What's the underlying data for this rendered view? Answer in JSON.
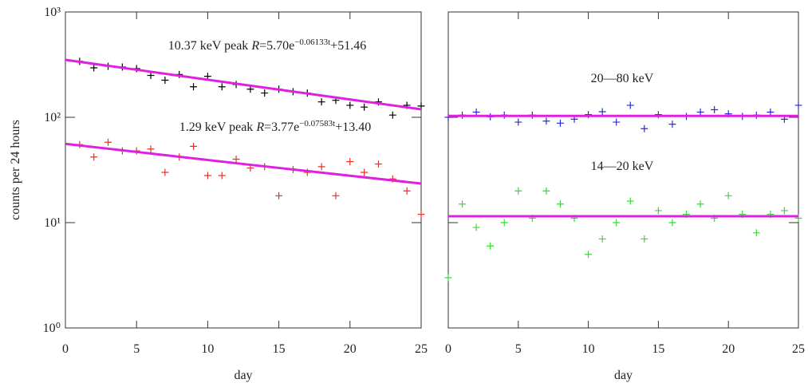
{
  "chart_data": [
    {
      "type": "scatter",
      "ylabel": "counts per 24 hours",
      "xlabel": "day",
      "log_y": true,
      "xlim": [
        0,
        25
      ],
      "xticks": [
        0,
        5,
        10,
        15,
        20,
        25
      ],
      "ylim": [
        1,
        1000
      ],
      "yticks": [
        {
          "value": 1,
          "label": "10⁰"
        },
        {
          "value": 10,
          "label": "10¹"
        },
        {
          "value": 100,
          "label": "10²"
        },
        {
          "value": 1000,
          "label": "10³"
        }
      ],
      "annotations": [
        [
          {
            "text": "10.37 keV peak "
          },
          {
            "text": "R",
            "style": "italic"
          },
          {
            "text": "=5.70e"
          },
          {
            "text": "−0.06133t",
            "style": "superscript"
          },
          {
            "text": "+51.46"
          }
        ],
        [
          {
            "text": "1.29 keV peak "
          },
          {
            "text": "R",
            "style": "italic"
          },
          {
            "text": "=3.77e"
          },
          {
            "text": "−0.07583t",
            "style": "superscript"
          },
          {
            "text": "+13.40"
          }
        ]
      ],
      "series": [
        {
          "type": "scatter",
          "marker": "+",
          "color": "#000000",
          "x": [
            1,
            2,
            3,
            4,
            5,
            6,
            7,
            8,
            9,
            10,
            11,
            12,
            13,
            14,
            15,
            16,
            17,
            18,
            19,
            20,
            21,
            22,
            23,
            24,
            25
          ],
          "values": [
            340,
            295,
            305,
            300,
            290,
            250,
            225,
            255,
            195,
            245,
            195,
            205,
            185,
            170,
            185,
            175,
            170,
            140,
            145,
            130,
            125,
            140,
            105,
            130,
            128
          ]
        },
        {
          "type": "scatter",
          "marker": "+",
          "color": "#e8302a",
          "x": [
            1,
            2,
            3,
            4,
            5,
            6,
            7,
            8,
            9,
            10,
            11,
            12,
            13,
            14,
            15,
            16,
            17,
            18,
            19,
            20,
            21,
            22,
            23,
            24,
            25
          ],
          "values": [
            55,
            42,
            58,
            48,
            48,
            50,
            30,
            42,
            53,
            28,
            28,
            40,
            33,
            34,
            18,
            32,
            30,
            34,
            18,
            38,
            30,
            36,
            26,
            20,
            12
          ]
        },
        {
          "type": "line",
          "color": "#e020e0",
          "x": [
            0,
            12.5,
            25
          ],
          "values": [
            351,
            204,
            119
          ]
        },
        {
          "type": "line",
          "color": "#e020e0",
          "x": [
            0,
            12.5,
            25
          ],
          "values": [
            56,
            36,
            23.5
          ]
        }
      ]
    },
    {
      "type": "scatter",
      "xlabel": "day",
      "log_y": true,
      "xlim": [
        0,
        25
      ],
      "xticks": [
        0,
        5,
        10,
        15,
        20,
        25
      ],
      "ylim": [
        1,
        1000
      ],
      "yticks": [
        1,
        10,
        100,
        1000
      ],
      "annotations": [
        [
          {
            "text": "20—80 keV"
          }
        ],
        [
          {
            "text": "14—20 keV"
          }
        ]
      ],
      "series": [
        {
          "type": "scatter",
          "marker": "+",
          "color": "#2a2ae0",
          "x": [
            0,
            1,
            2,
            3,
            4,
            5,
            6,
            7,
            8,
            9,
            10,
            11,
            12,
            13,
            14,
            15,
            16,
            17,
            18,
            19,
            20,
            21,
            22,
            23,
            24,
            25
          ],
          "values": [
            100,
            105,
            112,
            101,
            105,
            90,
            105,
            92,
            88,
            96,
            106,
            113,
            90,
            130,
            78,
            106,
            86,
            102,
            112,
            118,
            108,
            102,
            105,
            112,
            96,
            130
          ]
        },
        {
          "type": "scatter",
          "marker": "+",
          "color": "#33dd33",
          "x": [
            0,
            1,
            2,
            3,
            4,
            5,
            6,
            7,
            8,
            9,
            10,
            11,
            12,
            13,
            14,
            15,
            16,
            17,
            18,
            19,
            20,
            21,
            22,
            23,
            24,
            25
          ],
          "values": [
            3,
            15,
            9,
            6,
            10,
            20,
            11,
            20,
            15,
            11,
            5,
            7,
            10,
            16,
            7,
            13,
            10,
            12,
            15,
            11,
            18,
            12,
            8,
            12,
            13,
            11
          ]
        },
        {
          "type": "line",
          "color": "#e020e0",
          "x": [
            0,
            25
          ],
          "values": [
            103,
            103
          ]
        },
        {
          "type": "line",
          "color": "#e020e0",
          "x": [
            0,
            25
          ],
          "values": [
            11.5,
            11.5
          ]
        }
      ]
    }
  ]
}
